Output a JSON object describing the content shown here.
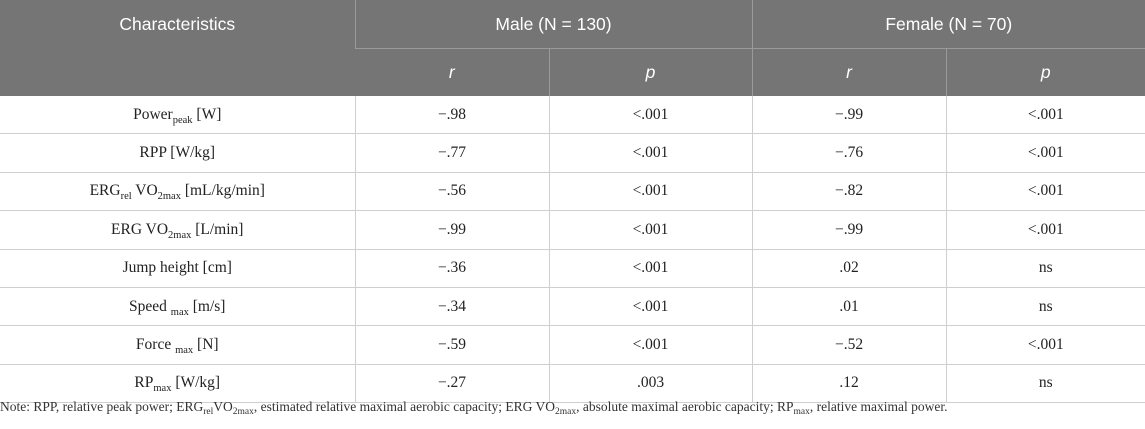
{
  "header": {
    "characteristics": "Characteristics",
    "male": "Male (N = 130)",
    "female": "Female (N = 70)",
    "r": "r",
    "p": "p"
  },
  "rows": [
    {
      "label": "Power",
      "label_sub": "peak",
      "label_suffix": " [W]",
      "male_r": "−.98",
      "male_p": "<.001",
      "female_r": "−.99",
      "female_p": "<.001"
    },
    {
      "label": "RPP [W/kg]",
      "male_r": "−.77",
      "male_p": "<.001",
      "female_r": "−.76",
      "female_p": "<.001"
    },
    {
      "label": "ERG",
      "label_sub": "rel",
      "label_mid": " VO",
      "label_sub2": "2max",
      "label_suffix": " [mL/kg/min]",
      "male_r": "−.56",
      "male_p": "<.001",
      "female_r": "−.82",
      "female_p": "<.001"
    },
    {
      "label": "ERG VO",
      "label_sub": "2max",
      "label_suffix": " [L/min]",
      "male_r": "−.99",
      "male_p": "<.001",
      "female_r": "−.99",
      "female_p": "<.001"
    },
    {
      "label": "Jump height [cm]",
      "male_r": "−.36",
      "male_p": "<.001",
      "female_r": ".02",
      "female_p": "ns"
    },
    {
      "label": "Speed ",
      "label_sub": "max",
      "label_suffix": " [m/s]",
      "male_r": "−.34",
      "male_p": "<.001",
      "female_r": ".01",
      "female_p": "ns"
    },
    {
      "label": "Force ",
      "label_sub": "max",
      "label_suffix": " [N]",
      "male_r": "−.59",
      "male_p": "<.001",
      "female_r": "−.52",
      "female_p": "<.001"
    },
    {
      "label": "RP",
      "label_sub": "max",
      "label_suffix": " [W/kg]",
      "male_r": "−.27",
      "male_p": ".003",
      "female_r": ".12",
      "female_p": "ns"
    }
  ],
  "note": {
    "p1": "Note: RPP, relative peak power; ERG",
    "s1": "rel",
    "p2": "VO",
    "s2": "2max",
    "p3": ", estimated relative maximal aerobic capacity; ERG VO",
    "s3": "2max",
    "p4": ", absolute maximal aerobic capacity; RP",
    "s4": "max",
    "p5": ", relative maximal power."
  }
}
